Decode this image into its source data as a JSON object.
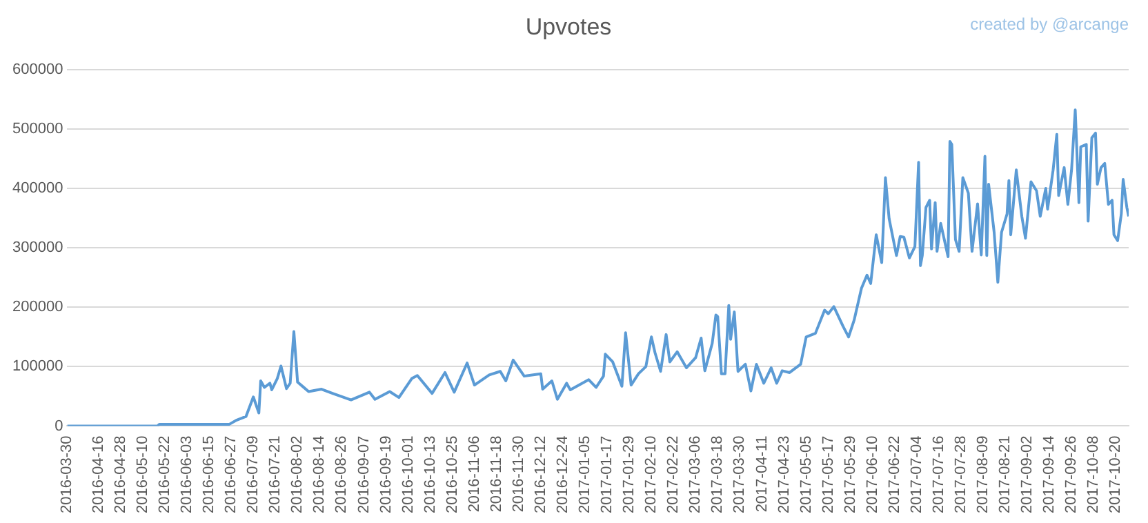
{
  "chart_data": {
    "type": "line",
    "title": "Upvotes",
    "annotations": [
      "created by @arcange"
    ],
    "xlim": [
      "2016-03-30",
      "2017-10-27"
    ],
    "xticks": [
      "2016-03-30",
      "2016-04-16",
      "2016-04-28",
      "2016-05-10",
      "2016-05-22",
      "2016-06-03",
      "2016-06-15",
      "2016-06-27",
      "2016-07-09",
      "2016-07-21",
      "2016-08-02",
      "2016-08-14",
      "2016-08-26",
      "2016-09-07",
      "2016-09-19",
      "2016-10-01",
      "2016-10-13",
      "2016-10-25",
      "2016-11-06",
      "2016-11-18",
      "2016-11-30",
      "2016-12-12",
      "2016-12-24",
      "2017-01-05",
      "2017-01-17",
      "2017-01-29",
      "2017-02-10",
      "2017-02-22",
      "2017-03-06",
      "2017-03-18",
      "2017-03-30",
      "2017-04-11",
      "2017-04-23",
      "2017-05-05",
      "2017-05-17",
      "2017-05-29",
      "2017-06-10",
      "2017-06-22",
      "2017-07-04",
      "2017-07-16",
      "2017-07-28",
      "2017-08-09",
      "2017-08-21",
      "2017-09-02",
      "2017-09-14",
      "2017-09-26",
      "2017-10-08",
      "2017-10-20"
    ],
    "ylim": [
      0,
      600000
    ],
    "yticks": [
      0,
      100000,
      200000,
      300000,
      400000,
      500000,
      600000
    ],
    "grid": "y",
    "legend": false,
    "marker": "none",
    "line_style": "solid",
    "series": [
      {
        "color": "#5b9bd5",
        "x": [
          "2016-03-30",
          "2016-05-18",
          "2016-05-19",
          "2016-06-26",
          "2016-06-30",
          "2016-07-05",
          "2016-07-09",
          "2016-07-10",
          "2016-07-12",
          "2016-07-13",
          "2016-07-15",
          "2016-07-18",
          "2016-07-19",
          "2016-07-22",
          "2016-07-24",
          "2016-07-27",
          "2016-07-29",
          "2016-07-31",
          "2016-08-02",
          "2016-08-05",
          "2016-08-08",
          "2016-08-15",
          "2016-08-21",
          "2016-08-31",
          "2016-09-10",
          "2016-09-13",
          "2016-09-21",
          "2016-09-26",
          "2016-10-03",
          "2016-10-06",
          "2016-10-14",
          "2016-10-21",
          "2016-10-26",
          "2016-11-02",
          "2016-11-06",
          "2016-11-14",
          "2016-11-20",
          "2016-11-23",
          "2016-11-27",
          "2016-12-03",
          "2016-12-12",
          "2016-12-13",
          "2016-12-18",
          "2016-12-21",
          "2016-12-26",
          "2016-12-28",
          "2017-01-07",
          "2017-01-11",
          "2017-01-15",
          "2017-01-16",
          "2017-01-20",
          "2017-01-25",
          "2017-01-27",
          "2017-01-30",
          "2017-02-03",
          "2017-02-07",
          "2017-02-10",
          "2017-02-12",
          "2017-02-15",
          "2017-02-18",
          "2017-02-20",
          "2017-02-24",
          "2017-03-01",
          "2017-03-06",
          "2017-03-09",
          "2017-03-11",
          "2017-03-15",
          "2017-03-17",
          "2017-03-18",
          "2017-03-20",
          "2017-03-22",
          "2017-03-24",
          "2017-03-25",
          "2017-03-27",
          "2017-03-29",
          "2017-04-02",
          "2017-04-05",
          "2017-04-08",
          "2017-04-12",
          "2017-04-16",
          "2017-04-19",
          "2017-04-22",
          "2017-04-26",
          "2017-05-02",
          "2017-05-05",
          "2017-05-10",
          "2017-05-15",
          "2017-05-17",
          "2017-05-20",
          "2017-05-25",
          "2017-05-28",
          "2017-05-31",
          "2017-06-04",
          "2017-06-07",
          "2017-06-09",
          "2017-06-12",
          "2017-06-15",
          "2017-06-17",
          "2017-06-19",
          "2017-06-23",
          "2017-06-25",
          "2017-06-27",
          "2017-06-30",
          "2017-07-03",
          "2017-07-05",
          "2017-07-06",
          "2017-07-07",
          "2017-07-09",
          "2017-07-11",
          "2017-07-12",
          "2017-07-14",
          "2017-07-15",
          "2017-07-17",
          "2017-07-21",
          "2017-07-22",
          "2017-07-23",
          "2017-07-25",
          "2017-07-27",
          "2017-07-29",
          "2017-08-01",
          "2017-08-03",
          "2017-08-06",
          "2017-08-08",
          "2017-08-10",
          "2017-08-11",
          "2017-08-12",
          "2017-08-15",
          "2017-08-17",
          "2017-08-19",
          "2017-08-22",
          "2017-08-23",
          "2017-08-24",
          "2017-08-27",
          "2017-08-30",
          "2017-09-01",
          "2017-09-04",
          "2017-09-07",
          "2017-09-09",
          "2017-09-12",
          "2017-09-13",
          "2017-09-16",
          "2017-09-18",
          "2017-09-19",
          "2017-09-22",
          "2017-09-24",
          "2017-09-26",
          "2017-09-28",
          "2017-09-30",
          "2017-10-01",
          "2017-10-04",
          "2017-10-05",
          "2017-10-07",
          "2017-10-09",
          "2017-10-10",
          "2017-10-12",
          "2017-10-14",
          "2017-10-16",
          "2017-10-18",
          "2017-10-19",
          "2017-10-21",
          "2017-10-23",
          "2017-10-24",
          "2017-10-26",
          "2017-10-27"
        ],
        "values": [
          0,
          0,
          3000,
          3000,
          10000,
          16000,
          49000,
          40000,
          22000,
          76000,
          65000,
          72000,
          61000,
          80000,
          101000,
          63000,
          72000,
          159000,
          74000,
          66000,
          58000,
          62000,
          55000,
          44000,
          57000,
          45000,
          58000,
          48000,
          80000,
          85000,
          55000,
          90000,
          57000,
          106000,
          69000,
          86000,
          92000,
          76000,
          111000,
          84000,
          88000,
          62000,
          76000,
          45000,
          72000,
          61000,
          78000,
          65000,
          84000,
          121000,
          108000,
          67000,
          157000,
          69000,
          88000,
          100000,
          150000,
          123000,
          92000,
          154000,
          108000,
          125000,
          98000,
          115000,
          148000,
          93000,
          139000,
          187000,
          184000,
          88000,
          88000,
          203000,
          146000,
          192000,
          92000,
          104000,
          59000,
          104000,
          72000,
          98000,
          72000,
          93000,
          90000,
          104000,
          150000,
          156000,
          195000,
          189000,
          201000,
          168000,
          150000,
          178000,
          232000,
          254000,
          240000,
          322000,
          275000,
          418000,
          349000,
          287000,
          319000,
          318000,
          283000,
          302000,
          444000,
          270000,
          287000,
          368000,
          380000,
          298000,
          376000,
          294000,
          341000,
          285000,
          479000,
          474000,
          314000,
          294000,
          418000,
          392000,
          294000,
          374000,
          288000,
          454000,
          287000,
          407000,
          326000,
          242000,
          326000,
          357000,
          413000,
          322000,
          431000,
          353000,
          316000,
          411000,
          396000,
          353000,
          400000,
          365000,
          431000,
          491000,
          388000,
          435000,
          373000,
          431000,
          532000,
          376000,
          470000,
          474000,
          345000,
          485000,
          493000,
          407000,
          435000,
          442000,
          373000,
          380000,
          322000,
          312000,
          357000,
          415000,
          368000,
          353000
        ]
      }
    ]
  }
}
